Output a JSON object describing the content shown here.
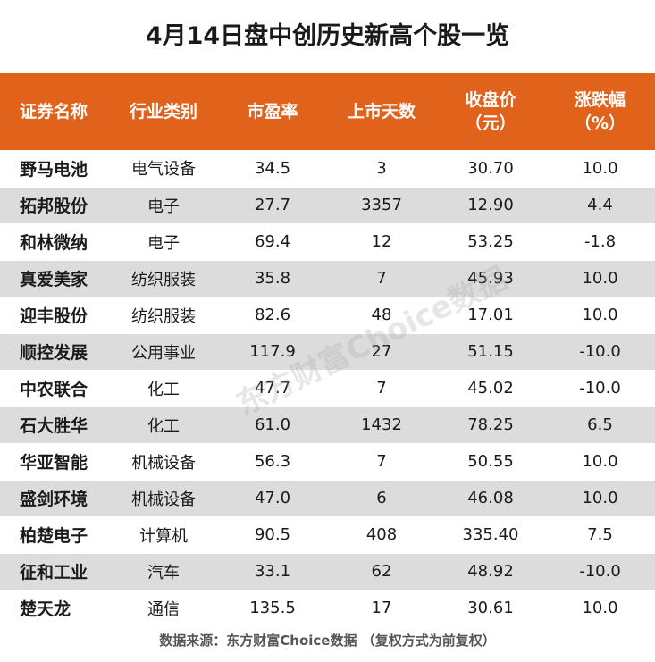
{
  "title": "4月14日盘中创历史新高个股一览",
  "headers": [
    {
      "line1": "证券名称",
      "line2": ""
    },
    {
      "line1": "行业类别",
      "line2": ""
    },
    {
      "line1": "市盈率",
      "line2": ""
    },
    {
      "line1": "上市天数",
      "line2": ""
    },
    {
      "line1": "收盘价",
      "line2": "（元）"
    },
    {
      "line1": "涨跌幅",
      "line2": "（%）"
    }
  ],
  "rows": [
    [
      "野马电池",
      "电气设备",
      "34.5",
      "3",
      "30.70",
      "10.0"
    ],
    [
      "拓邦股份",
      "电子",
      "27.7",
      "3357",
      "12.90",
      "4.4"
    ],
    [
      "和林微纳",
      "电子",
      "69.4",
      "12",
      "53.25",
      "-1.8"
    ],
    [
      "真爱美家",
      "纺织服装",
      "35.8",
      "7",
      "45.93",
      "10.0"
    ],
    [
      "迎丰股份",
      "纺织服装",
      "82.6",
      "48",
      "17.01",
      "10.0"
    ],
    [
      "顺控发展",
      "公用事业",
      "117.9",
      "27",
      "51.15",
      "-10.0"
    ],
    [
      "中农联合",
      "化工",
      "47.7",
      "7",
      "45.02",
      "-10.0"
    ],
    [
      "石大胜华",
      "化工",
      "61.0",
      "1432",
      "78.25",
      "6.5"
    ],
    [
      "华亚智能",
      "机械设备",
      "56.3",
      "7",
      "50.55",
      "10.0"
    ],
    [
      "盛剑环境",
      "机械设备",
      "47.0",
      "6",
      "46.08",
      "10.0"
    ],
    [
      "柏楚电子",
      "计算机",
      "90.5",
      "408",
      "335.40",
      "7.5"
    ],
    [
      "征和工业",
      "汽车",
      "33.1",
      "62",
      "48.92",
      "-10.0"
    ],
    [
      "楚天龙",
      "通信",
      "135.5",
      "17",
      "30.61",
      "10.0"
    ]
  ],
  "footer": "数据来源：东方财富Choice数据 （复权方式为前复权）",
  "watermark": "东方财富Choice数据",
  "colors": {
    "header_bg": "#e0621b",
    "stripe": "#dcdcdc"
  }
}
